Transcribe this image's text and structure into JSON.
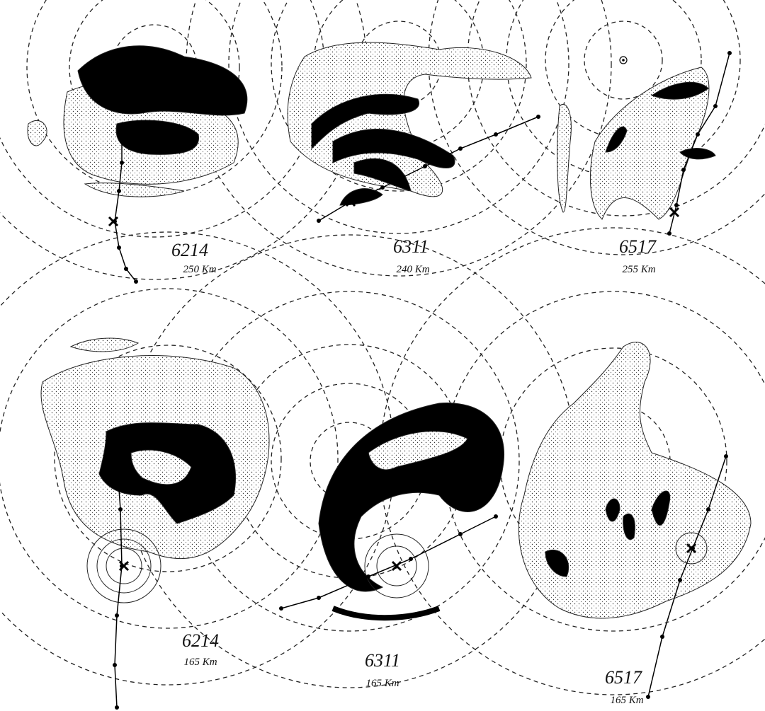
{
  "panels": [
    {
      "id": "6214",
      "range": "250 Km"
    },
    {
      "id": "6311",
      "range": "240 Km"
    },
    {
      "id": "6517",
      "range": "255 Km"
    },
    {
      "id": "6214",
      "range": "165 Km"
    },
    {
      "id": "6311",
      "range": "165 Km"
    },
    {
      "id": "6517",
      "range": "165 Km"
    }
  ]
}
